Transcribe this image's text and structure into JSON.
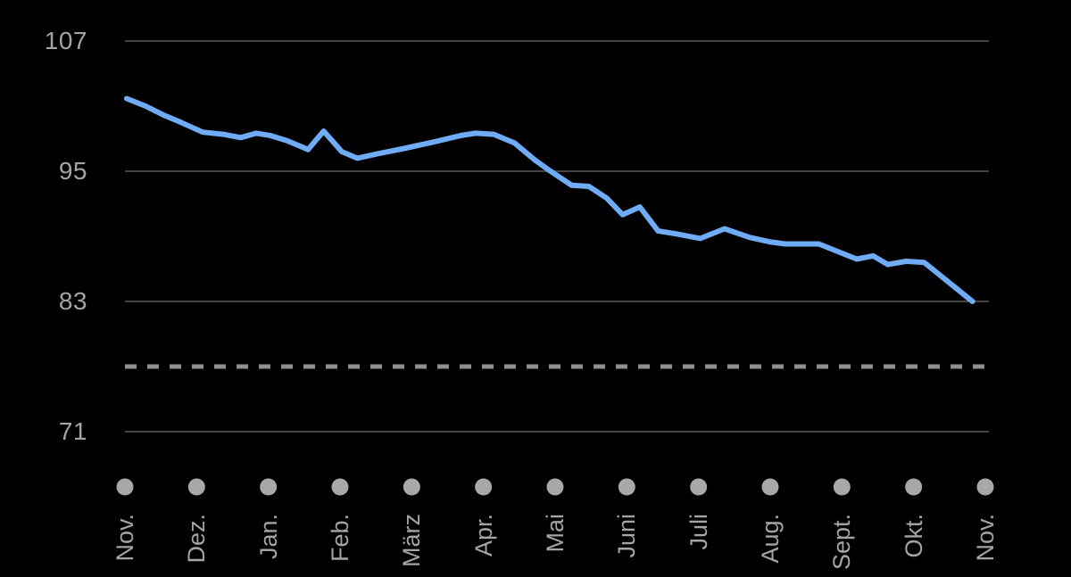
{
  "chart_data": {
    "type": "line",
    "title": "",
    "xlabel": "",
    "ylabel": "",
    "y_ticks": [
      107,
      95,
      83,
      71
    ],
    "ylim": [
      71,
      107
    ],
    "x_tick_labels": [
      "Nov.",
      "Dez.",
      "Jan.",
      "Feb.",
      "März",
      "Apr.",
      "Mai",
      "Juni",
      "Juli",
      "Aug.",
      "Sept.",
      "Okt.",
      "Nov."
    ],
    "goal_line_value": 77,
    "grid": true,
    "legend_position": "none",
    "series": [
      {
        "points": [
          [
            0.002,
            101.7
          ],
          [
            0.024,
            101.0
          ],
          [
            0.044,
            100.2
          ],
          [
            0.065,
            99.5
          ],
          [
            0.09,
            98.6
          ],
          [
            0.114,
            98.4
          ],
          [
            0.134,
            98.1
          ],
          [
            0.152,
            98.5
          ],
          [
            0.168,
            98.3
          ],
          [
            0.188,
            97.8
          ],
          [
            0.212,
            97.0
          ],
          [
            0.23,
            98.7
          ],
          [
            0.251,
            96.8
          ],
          [
            0.269,
            96.2
          ],
          [
            0.292,
            96.6
          ],
          [
            0.323,
            97.1
          ],
          [
            0.358,
            97.7
          ],
          [
            0.389,
            98.3
          ],
          [
            0.406,
            98.5
          ],
          [
            0.427,
            98.4
          ],
          [
            0.451,
            97.6
          ],
          [
            0.475,
            96.0
          ],
          [
            0.489,
            95.2
          ],
          [
            0.517,
            93.7
          ],
          [
            0.537,
            93.6
          ],
          [
            0.558,
            92.5
          ],
          [
            0.576,
            91.0
          ],
          [
            0.596,
            91.7
          ],
          [
            0.617,
            89.5
          ],
          [
            0.64,
            89.2
          ],
          [
            0.666,
            88.8
          ],
          [
            0.694,
            89.7
          ],
          [
            0.723,
            88.9
          ],
          [
            0.746,
            88.5
          ],
          [
            0.764,
            88.3
          ],
          [
            0.803,
            88.3
          ],
          [
            0.847,
            86.9
          ],
          [
            0.866,
            87.2
          ],
          [
            0.883,
            86.4
          ],
          [
            0.904,
            86.7
          ],
          [
            0.925,
            86.6
          ],
          [
            0.981,
            83.0
          ]
        ]
      }
    ],
    "colors": {
      "background": "#000000",
      "line": "#6FACF5",
      "grid": "#434347",
      "goal": "#8E8E93",
      "tick_text": "#A3A3A8",
      "dot": "#A8A8AC"
    }
  }
}
